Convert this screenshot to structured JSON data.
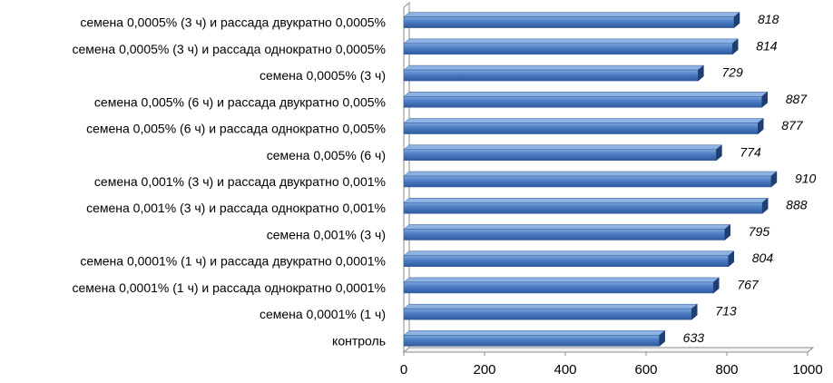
{
  "chart_data": {
    "type": "bar",
    "orientation": "horizontal",
    "style": "3d",
    "title": "",
    "xlabel": "",
    "ylabel": "",
    "xlim": [
      0,
      1000
    ],
    "xticks": [
      0,
      200,
      400,
      600,
      800,
      1000
    ],
    "grid": false,
    "legend": "none",
    "bar_color": "#4a7cc4",
    "categories": [
      "семена 0,0005% (3 ч) и рассада двукратно  0,0005%",
      "семена 0,0005% (3 ч) и рассада однократно 0,0005%",
      "семена 0,0005% (3 ч)",
      "семена 0,005% (6 ч) и рассада двукратно 0,005%",
      "семена 0,005% (6 ч) и рассада однократно 0,005%",
      "семена 0,005% (6 ч)",
      "семена 0,001% (3 ч) и рассада двукратно 0,001%",
      "семена 0,001% (3 ч) и рассада однократно 0,001%",
      "семена 0,001% (3 ч)",
      "семена 0,0001%  (1 ч) и рассада двукратно 0,0001%",
      "семена 0,0001%  (1 ч) и рассада однократно 0,0001%",
      "семена 0,0001%  (1 ч)",
      "контроль"
    ],
    "values": [
      818,
      814,
      729,
      887,
      877,
      774,
      910,
      888,
      795,
      804,
      767,
      713,
      633
    ]
  }
}
